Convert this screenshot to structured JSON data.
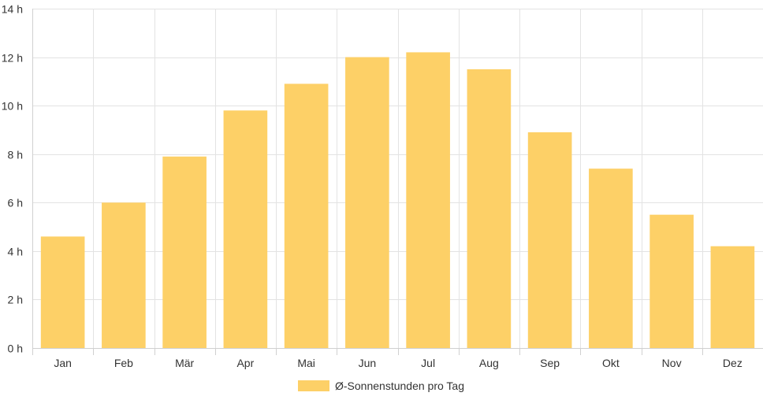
{
  "chart_data": {
    "type": "bar",
    "categories": [
      "Jan",
      "Feb",
      "Mär",
      "Apr",
      "Mai",
      "Jun",
      "Jul",
      "Aug",
      "Sep",
      "Okt",
      "Nov",
      "Dez"
    ],
    "series": [
      {
        "name": "Ø-Sonnenstunden pro Tag",
        "values": [
          4.6,
          6.0,
          7.9,
          9.8,
          10.9,
          12.0,
          12.2,
          11.5,
          8.9,
          7.4,
          5.5,
          4.2
        ],
        "color": "#fdd067"
      }
    ],
    "ylim": [
      0,
      14
    ],
    "yticks": [
      0,
      2,
      4,
      6,
      8,
      10,
      12,
      14
    ],
    "ytick_suffix": " h",
    "grid": true,
    "legend_position": "bottom"
  }
}
